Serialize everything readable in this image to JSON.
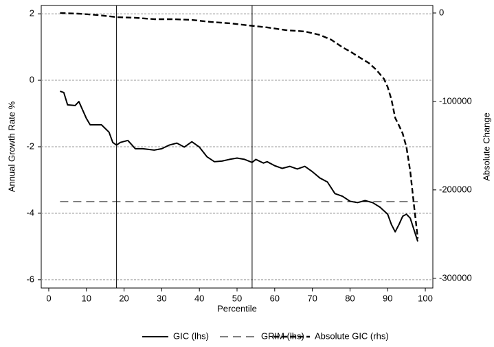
{
  "chart_data": {
    "type": "line",
    "x_label": "Percentile",
    "y_label": "Annual Growth Rate %",
    "y2_label": "Absolute Change",
    "xlim": [
      -2,
      102
    ],
    "xticks": [
      0,
      10,
      20,
      30,
      40,
      50,
      60,
      70,
      80,
      90,
      100
    ],
    "ylim": [
      -6.25,
      2.25
    ],
    "yticks": [
      -6,
      -4,
      -2,
      0,
      2
    ],
    "y2lim": [
      -311000,
      8500
    ],
    "y2ticks": [
      -300000,
      -200000,
      -100000,
      0
    ],
    "grid": true,
    "vlines": [
      18,
      54
    ],
    "legend": "bottom",
    "series": [
      {
        "name": "GIC (lhs)",
        "color": "#000000",
        "dash": "solid",
        "line_width": 2,
        "x": [
          3,
          4,
          5,
          7,
          8,
          10,
          11,
          14,
          16,
          17,
          18,
          19,
          21,
          23,
          25,
          28,
          30,
          32,
          34,
          36,
          38,
          40,
          42,
          44,
          46,
          48,
          50,
          52,
          54,
          55,
          57,
          58,
          60,
          62,
          64,
          66,
          68,
          70,
          72,
          74,
          76,
          78,
          80,
          82,
          84,
          86,
          88,
          90,
          91,
          92,
          93,
          94,
          95,
          96,
          97,
          98
        ],
        "values": [
          -0.33,
          -0.37,
          -0.74,
          -0.76,
          -0.64,
          -1.15,
          -1.34,
          -1.34,
          -1.56,
          -1.87,
          -1.95,
          -1.87,
          -1.81,
          -2.06,
          -2.06,
          -2.1,
          -2.06,
          -1.95,
          -1.89,
          -2.01,
          -1.85,
          -2.01,
          -2.3,
          -2.45,
          -2.43,
          -2.38,
          -2.34,
          -2.38,
          -2.47,
          -2.38,
          -2.49,
          -2.45,
          -2.57,
          -2.65,
          -2.59,
          -2.67,
          -2.59,
          -2.75,
          -2.94,
          -3.06,
          -3.41,
          -3.49,
          -3.64,
          -3.68,
          -3.62,
          -3.68,
          -3.82,
          -4.03,
          -4.34,
          -4.56,
          -4.34,
          -4.09,
          -4.03,
          -4.15,
          -4.5,
          -4.85
        ]
      },
      {
        "name": "GRIM (lhs)",
        "color": "#000000",
        "dash": "longdash",
        "line_width": 1,
        "x": [
          3,
          98
        ],
        "values": [
          -3.65,
          -3.65
        ]
      },
      {
        "name": "Absolute GIC (rhs)",
        "color": "#000000",
        "dash": "dash",
        "line_width": 2.4,
        "axis": "y2",
        "x": [
          3,
          8,
          13,
          18,
          23,
          28,
          33,
          38,
          43,
          48,
          53,
          58,
          63,
          68,
          72,
          75,
          78,
          80,
          82,
          85,
          87,
          89,
          90,
          91,
          92,
          93,
          94,
          95,
          96,
          97,
          98
        ],
        "values": [
          0,
          -800,
          -2300,
          -4700,
          -5400,
          -7000,
          -7000,
          -7800,
          -10100,
          -11600,
          -14000,
          -16300,
          -19400,
          -20900,
          -24800,
          -30200,
          -38800,
          -43400,
          -48800,
          -56600,
          -64300,
          -74400,
          -83700,
          -97700,
          -118600,
          -127100,
          -136400,
          -151900,
          -179100,
          -217800,
          -255000
        ]
      }
    ]
  }
}
